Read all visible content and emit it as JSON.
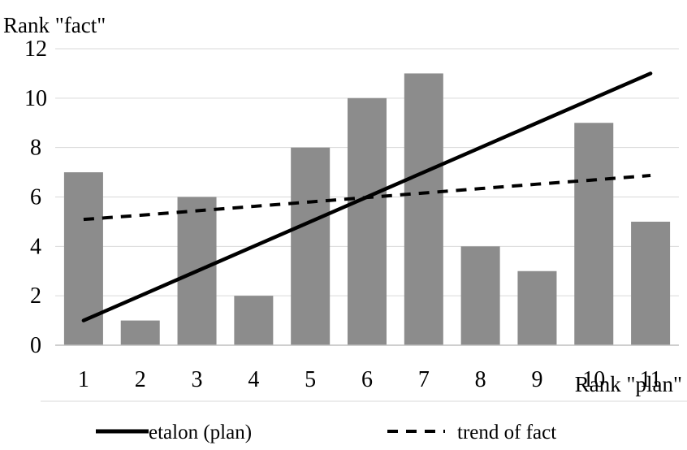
{
  "chart_data": {
    "type": "bar",
    "categories": [
      "1",
      "2",
      "3",
      "4",
      "5",
      "6",
      "7",
      "8",
      "9",
      "10",
      "11"
    ],
    "xlabel": "Rank \"plan\"",
    "ylabel": "Rank \"fact\"",
    "ylim": [
      0,
      12
    ],
    "yticks": [
      "0",
      "2",
      "4",
      "6",
      "8",
      "10",
      "12"
    ],
    "grid": "horizontal",
    "legend_position": "bottom",
    "bars": {
      "values": [
        7,
        1,
        6,
        2,
        8,
        10,
        11,
        4,
        3,
        9,
        5
      ],
      "color": "#8c8c8c"
    },
    "series": [
      {
        "name": "etalon (plan)",
        "type": "line",
        "style": "solid",
        "color": "#000000",
        "values": [
          1,
          2,
          3,
          4,
          5,
          6,
          7,
          8,
          9,
          10,
          11
        ]
      },
      {
        "name": "trend of fact",
        "type": "line",
        "style": "dashed",
        "color": "#000000",
        "values": [
          5.09,
          5.26,
          5.44,
          5.62,
          5.8,
          5.98,
          6.16,
          6.34,
          6.52,
          6.69,
          6.87
        ]
      }
    ]
  }
}
